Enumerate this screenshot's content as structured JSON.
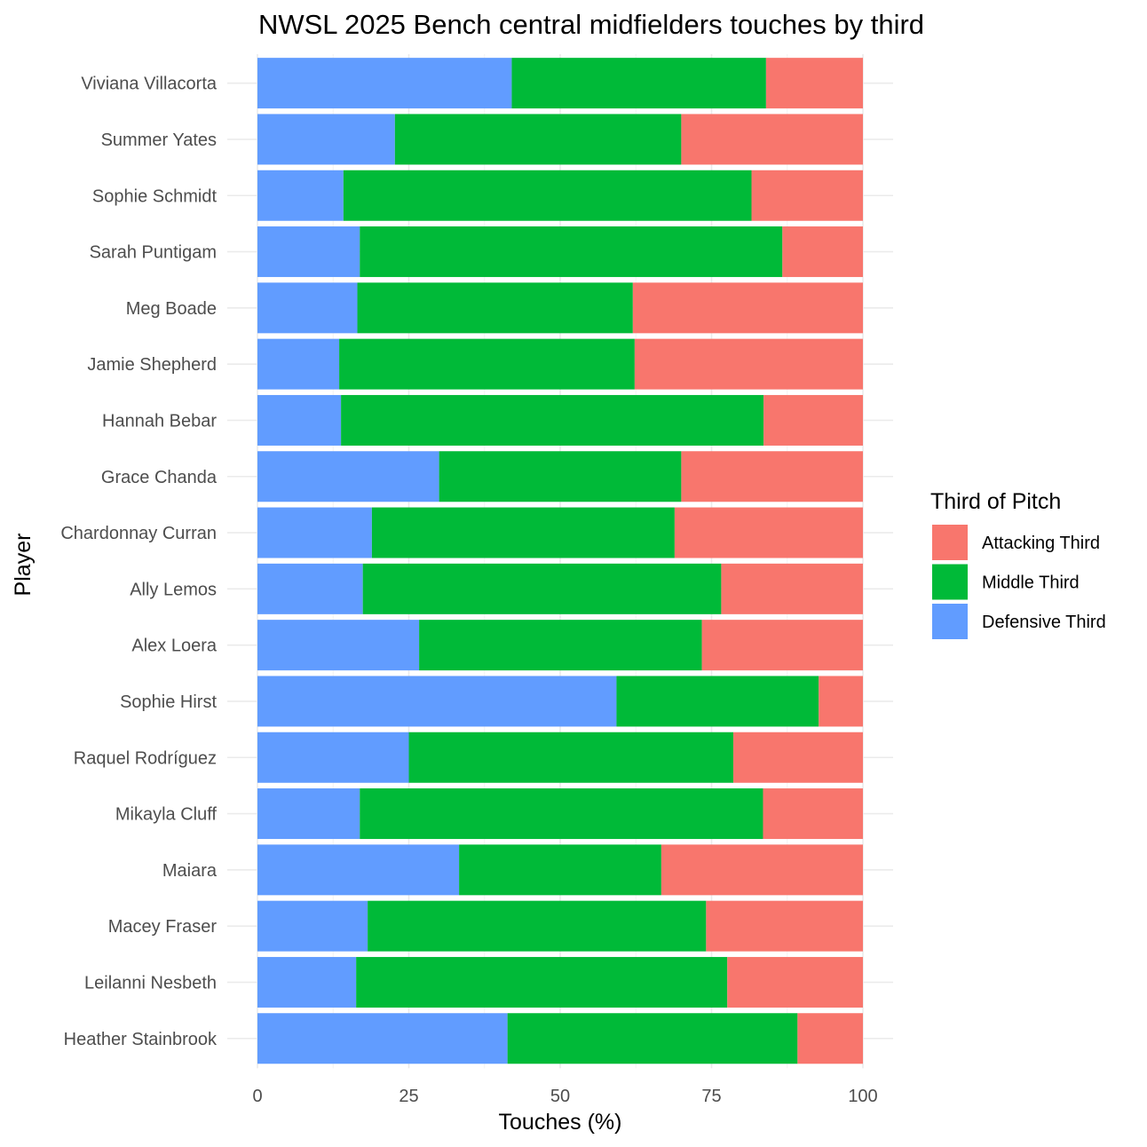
{
  "chart_data": {
    "type": "bar",
    "orientation": "horizontal",
    "stacked": true,
    "title": "NWSL 2025 Bench central midfielders touches by third",
    "xlabel": "Touches (%)",
    "ylabel": "Player",
    "xlim": [
      0,
      100
    ],
    "xticks": [
      "0",
      "25",
      "50",
      "75",
      "100"
    ],
    "grid": true,
    "legend": {
      "title": "Third of Pitch",
      "placement": "right",
      "entries": [
        "Attacking Third",
        "Middle Third",
        "Defensive Third"
      ]
    },
    "colors": {
      "Attacking Third": "#F8766D",
      "Middle Third": "#00BA38",
      "Defensive Third": "#619CFF"
    },
    "categories": [
      "Viviana Villacorta",
      "Summer Yates",
      "Sophie Schmidt",
      "Sarah Puntigam",
      "Meg Boade",
      "Jamie Shepherd",
      "Hannah Bebar",
      "Grace Chanda",
      "Chardonnay Curran",
      "Ally Lemos",
      "Alex Loera",
      "Sophie Hirst",
      "Raquel Rodríguez",
      "Mikayla Cluff",
      "Maiara",
      "Macey Fraser",
      "Leilanni Nesbeth",
      "Heather Stainbrook"
    ],
    "series": [
      {
        "name": "Defensive Third",
        "values": [
          42.0,
          22.7,
          14.2,
          16.9,
          16.5,
          13.5,
          13.8,
          30.0,
          18.9,
          17.4,
          26.7,
          59.3,
          25.0,
          16.9,
          33.3,
          18.2,
          16.3,
          41.3
        ]
      },
      {
        "name": "Middle Third",
        "values": [
          42.0,
          47.3,
          67.4,
          69.8,
          45.5,
          48.8,
          69.8,
          40.0,
          50.0,
          59.2,
          46.7,
          33.4,
          53.6,
          66.6,
          33.4,
          55.9,
          61.3,
          47.9
        ]
      },
      {
        "name": "Attacking Third",
        "values": [
          16.0,
          30.0,
          18.4,
          13.3,
          38.0,
          37.7,
          16.4,
          30.0,
          31.1,
          23.4,
          26.6,
          7.3,
          21.4,
          16.5,
          33.3,
          25.9,
          22.4,
          10.8
        ]
      }
    ]
  }
}
